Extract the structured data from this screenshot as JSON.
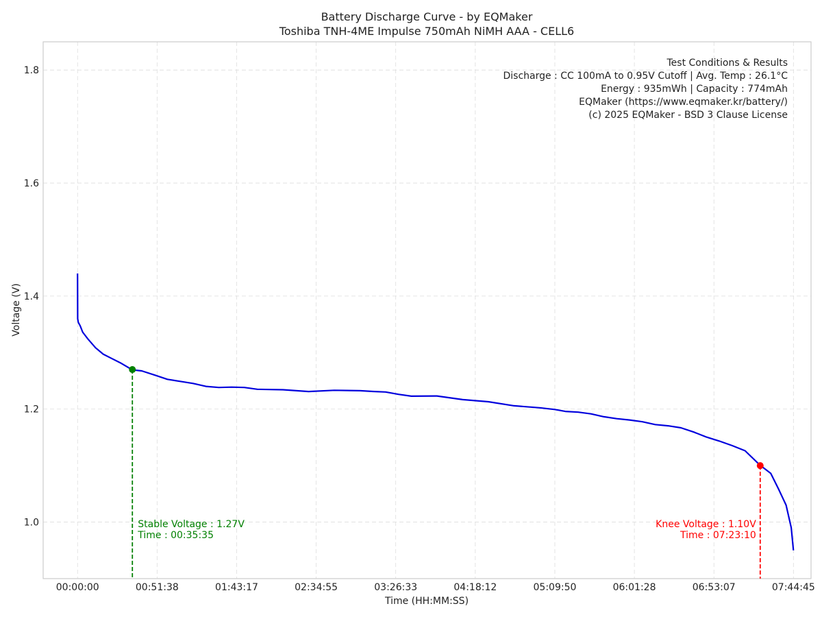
{
  "chart_data": {
    "type": "line",
    "title": "Battery Discharge Curve - by EQMaker",
    "subtitle": "Toshiba TNH-4ME Impulse 750mAh NiMH AAA - CELL6",
    "xlabel": "Time (HH:MM:SS)",
    "ylabel": "Voltage (V)",
    "x_unit": "seconds",
    "xlim": [
      -1340,
      28570
    ],
    "ylim": [
      0.9,
      1.85
    ],
    "grid": true,
    "x_ticks": [
      {
        "value": 0,
        "label": "00:00:00"
      },
      {
        "value": 3098,
        "label": "00:51:38"
      },
      {
        "value": 6197,
        "label": "01:43:17"
      },
      {
        "value": 9295,
        "label": "02:34:55"
      },
      {
        "value": 12393,
        "label": "03:26:33"
      },
      {
        "value": 15492,
        "label": "04:18:12"
      },
      {
        "value": 18590,
        "label": "05:09:50"
      },
      {
        "value": 21688,
        "label": "06:01:28"
      },
      {
        "value": 24787,
        "label": "06:53:07"
      },
      {
        "value": 27885,
        "label": "07:44:45"
      }
    ],
    "y_ticks": [
      {
        "value": 1.0,
        "label": "1.0"
      },
      {
        "value": 1.2,
        "label": "1.2"
      },
      {
        "value": 1.4,
        "label": "1.4"
      },
      {
        "value": 1.6,
        "label": "1.6"
      },
      {
        "value": 1.8,
        "label": "1.8"
      }
    ],
    "series": [
      {
        "color": "#0000dd",
        "x": [
          0,
          5,
          30,
          100,
          200,
          400,
          700,
          1000,
          1300,
          1700,
          2135,
          2500,
          3000,
          3500,
          4000,
          4500,
          5000,
          5500,
          6000,
          6500,
          7000,
          7500,
          8000,
          9000,
          10000,
          11000,
          11500,
          12000,
          12500,
          13000,
          14000,
          15000,
          16000,
          17000,
          18000,
          18590,
          19000,
          19500,
          20000,
          20500,
          21000,
          21500,
          22000,
          22500,
          23000,
          23500,
          24000,
          24500,
          25000,
          25500,
          26000,
          26590,
          27000,
          27300,
          27600,
          27800,
          27885
        ],
        "y": [
          1.44,
          1.36,
          1.355,
          1.348,
          1.337,
          1.323,
          1.31,
          1.298,
          1.288,
          1.28,
          1.27,
          1.268,
          1.262,
          1.255,
          1.25,
          1.246,
          1.242,
          1.24,
          1.239,
          1.238,
          1.236,
          1.235,
          1.233,
          1.231,
          1.231,
          1.232,
          1.23,
          1.228,
          1.225,
          1.223,
          1.222,
          1.218,
          1.213,
          1.208,
          1.203,
          1.2,
          1.198,
          1.195,
          1.192,
          1.188,
          1.184,
          1.18,
          1.177,
          1.173,
          1.17,
          1.165,
          1.158,
          1.15,
          1.142,
          1.133,
          1.125,
          1.1,
          1.085,
          1.06,
          1.03,
          0.99,
          0.95
        ]
      }
    ],
    "markers": [
      {
        "x": 2135,
        "y": 1.27,
        "color": "#008000",
        "label_voltage": "Stable Voltage : 1.27V",
        "label_time": "Time : 00:35:35",
        "align": "left"
      },
      {
        "x": 26590,
        "y": 1.1,
        "color": "#ff0000",
        "label_voltage": "Knee Voltage : 1.10V",
        "label_time": "Time : 07:23:10",
        "align": "right"
      }
    ],
    "info_box": {
      "placement": "top-right",
      "lines": [
        "Test Conditions & Results",
        "Discharge : CC 100mA to 0.95V Cutoff | Avg. Temp : 26.1°C",
        "Energy : 935mWh | Capacity : 774mAh",
        "EQMaker (https://www.eqmaker.kr/battery/)",
        "(c) 2025 EQMaker - BSD 3 Clause License"
      ]
    }
  }
}
